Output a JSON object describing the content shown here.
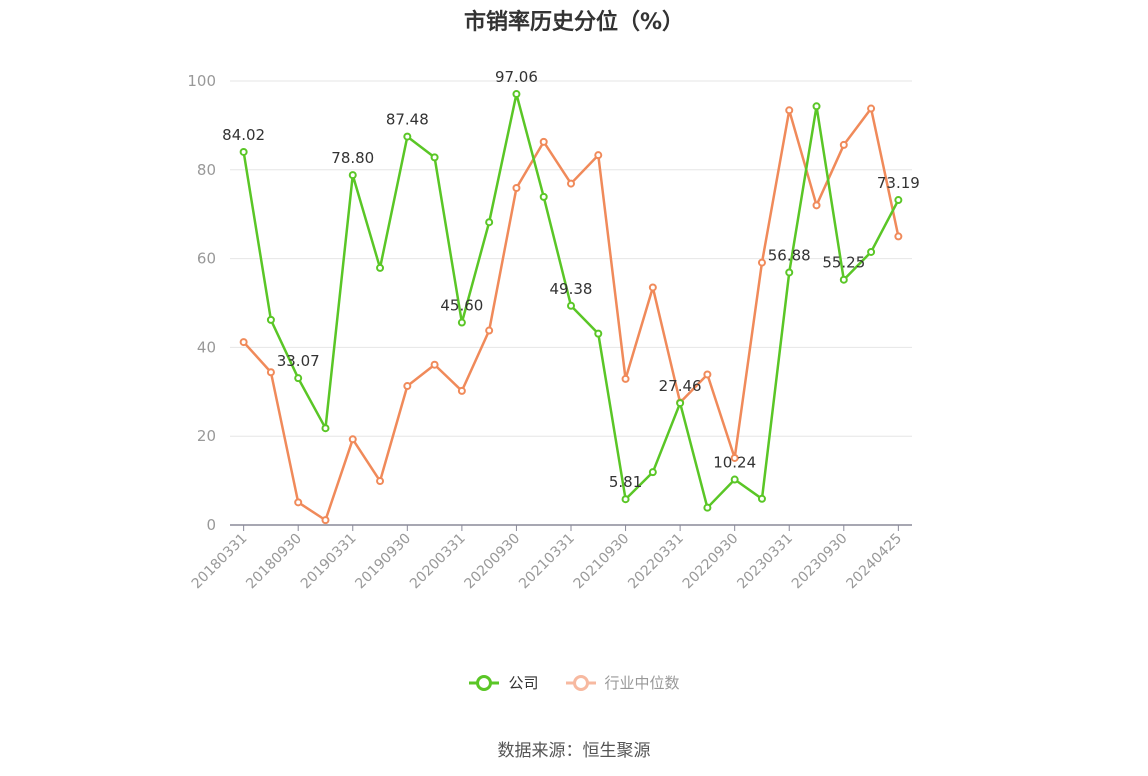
{
  "title": "市销率历史分位（%）",
  "source": "数据来源：恒生聚源",
  "colors": {
    "company": "#5ac626",
    "industry": "#f08a5a",
    "grid": "#e6e6e6",
    "axis": "#8a8a99"
  },
  "chart_data": {
    "type": "line",
    "title": "市销率历史分位（%）",
    "xlabel": "",
    "ylabel": "",
    "ylim": [
      0,
      100
    ],
    "yticks": [
      0,
      20,
      40,
      60,
      80,
      100
    ],
    "grid": true,
    "legend_position": "bottom",
    "x": [
      "20180331",
      "20180630",
      "20180930",
      "20181231",
      "20190331",
      "20190630",
      "20190930",
      "20191231",
      "20200331",
      "20200630",
      "20200930",
      "20201231",
      "20210331",
      "20210630",
      "20210930",
      "20211231",
      "20220331",
      "20220630",
      "20220930",
      "20221231",
      "20230331",
      "20230630",
      "20230930",
      "20231231",
      "20240425"
    ],
    "xtick_labels": [
      "20180331",
      "20180930",
      "20190331",
      "20190930",
      "20200331",
      "20200930",
      "20210331",
      "20210930",
      "20220331",
      "20220930",
      "20230331",
      "20230930",
      "20240425"
    ],
    "series": [
      {
        "name": "公司",
        "values": [
          84.02,
          46.2,
          33.07,
          21.8,
          78.8,
          57.9,
          87.48,
          82.8,
          45.6,
          68.2,
          97.06,
          73.9,
          49.38,
          43.1,
          5.81,
          11.9,
          27.46,
          3.9,
          10.24,
          5.9,
          56.88,
          94.3,
          55.25,
          61.5,
          73.19
        ],
        "labels": [
          "84.02",
          null,
          "33.07",
          null,
          "78.80",
          null,
          "87.48",
          null,
          "45.60",
          null,
          "97.06",
          null,
          "49.38",
          null,
          "5.81",
          null,
          "27.46",
          null,
          "10.24",
          null,
          "56.88",
          null,
          "55.25",
          null,
          "73.19"
        ]
      },
      {
        "name": "行业中位数",
        "values": [
          41.2,
          34.4,
          5.1,
          1.1,
          19.3,
          9.9,
          31.3,
          36.1,
          30.2,
          43.8,
          75.9,
          86.3,
          76.9,
          83.3,
          32.9,
          53.5,
          27.6,
          33.9,
          15.1,
          59.1,
          93.4,
          72.0,
          85.6,
          93.8,
          65.0
        ]
      }
    ]
  }
}
